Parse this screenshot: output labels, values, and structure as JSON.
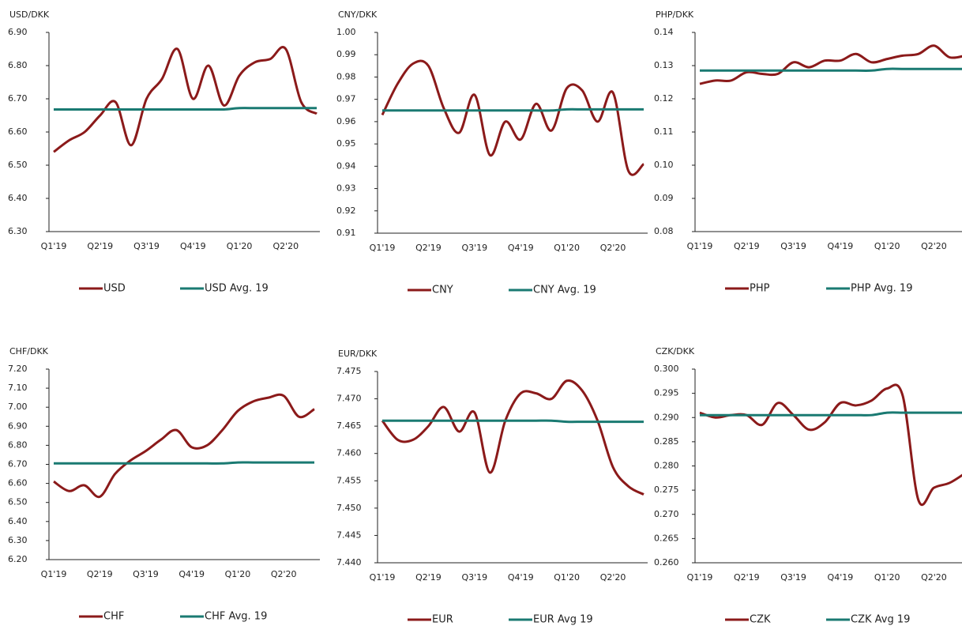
{
  "chart_data": [
    {
      "type": "line",
      "title": "USD/DKK",
      "categories": [
        "Q1'19",
        null,
        null,
        "Q2'19",
        null,
        null,
        "Q3'19",
        null,
        null,
        "Q4'19",
        null,
        null,
        "Q1'20",
        null,
        null,
        "Q2'20",
        null,
        null
      ],
      "series": [
        {
          "name": "USD",
          "color": "#8b1a1a",
          "values": [
            6.54,
            6.575,
            6.6,
            6.65,
            6.69,
            6.56,
            6.7,
            6.76,
            6.85,
            6.7,
            6.8,
            6.68,
            6.77,
            6.81,
            6.82,
            6.85,
            6.69,
            6.655
          ]
        },
        {
          "name": "USD Avg. 19",
          "color": "#1a7a72",
          "values": [
            6.668,
            6.668,
            6.668,
            6.668,
            6.668,
            6.668,
            6.668,
            6.668,
            6.668,
            6.668,
            6.668,
            6.668,
            6.672,
            6.672,
            6.672,
            6.672,
            6.672,
            6.672
          ]
        }
      ],
      "ylim": [
        6.3,
        6.9
      ],
      "yticks": [
        {
          "value": 6.3,
          "label": "6.30"
        },
        {
          "value": 6.4,
          "label": "6.40"
        },
        {
          "value": 6.5,
          "label": "6.50"
        },
        {
          "value": 6.6,
          "label": "6.60"
        },
        {
          "value": 6.7,
          "label": "6.70"
        },
        {
          "value": 6.8,
          "label": "6.80"
        },
        {
          "value": 6.9,
          "label": "6.90"
        }
      ]
    },
    {
      "type": "line",
      "title": "CNY/DKK",
      "categories": [
        "Q1'19",
        null,
        null,
        "Q2'19",
        null,
        null,
        "Q3'19",
        null,
        null,
        "Q4'19",
        null,
        null,
        "Q1'20",
        null,
        null,
        "Q2'20",
        null,
        null
      ],
      "series": [
        {
          "name": "CNY",
          "color": "#8b1a1a",
          "values": [
            0.963,
            0.977,
            0.986,
            0.985,
            0.966,
            0.955,
            0.972,
            0.945,
            0.96,
            0.952,
            0.968,
            0.956,
            0.975,
            0.974,
            0.96,
            0.973,
            0.938,
            0.941
          ]
        },
        {
          "name": "CNY Avg. 19",
          "color": "#1a7a72",
          "values": [
            0.965,
            0.965,
            0.965,
            0.965,
            0.965,
            0.965,
            0.965,
            0.965,
            0.965,
            0.965,
            0.965,
            0.965,
            0.9655,
            0.9655,
            0.9655,
            0.9655,
            0.9655,
            0.9655
          ]
        }
      ],
      "ylim": [
        0.91,
        1.0
      ],
      "yticks": [
        0.91,
        0.92,
        0.93,
        0.94,
        0.95,
        0.96,
        0.97,
        0.98,
        0.99,
        {
          "value": 1.0,
          "label": "1.00"
        }
      ]
    },
    {
      "type": "line",
      "title": "PHP/DKK",
      "categories": [
        "Q1'19",
        null,
        null,
        "Q2'19",
        null,
        null,
        "Q3'19",
        null,
        null,
        "Q4'19",
        null,
        null,
        "Q1'20",
        null,
        null,
        "Q2'20",
        null,
        null
      ],
      "series": [
        {
          "name": "PHP",
          "color": "#8b1a1a",
          "values": [
            0.1245,
            0.1255,
            0.1255,
            0.128,
            0.1275,
            0.1275,
            0.131,
            0.1295,
            0.1315,
            0.1315,
            0.1335,
            0.131,
            0.132,
            0.133,
            0.1335,
            0.136,
            0.1325,
            0.133
          ]
        },
        {
          "name": "PHP Avg. 19",
          "color": "#1a7a72",
          "values": [
            0.1285,
            0.1285,
            0.1285,
            0.1285,
            0.1285,
            0.1285,
            0.1285,
            0.1285,
            0.1285,
            0.1285,
            0.1285,
            0.1285,
            0.129,
            0.129,
            0.129,
            0.129,
            0.129,
            0.129
          ]
        }
      ],
      "ylim": [
        0.08,
        0.14
      ],
      "yticks": [
        0.08,
        0.09,
        {
          "value": 0.1,
          "label": "0.10"
        },
        0.11,
        0.12,
        0.13,
        0.14
      ]
    },
    {
      "type": "line",
      "title": "CHF/DKK",
      "categories": [
        "Q1'19",
        null,
        null,
        "Q2'19",
        null,
        null,
        "Q3'19",
        null,
        null,
        "Q4'19",
        null,
        null,
        "Q1'20",
        null,
        null,
        "Q2'20",
        null,
        null
      ],
      "series": [
        {
          "name": "CHF",
          "color": "#8b1a1a",
          "values": [
            6.61,
            6.56,
            6.59,
            6.53,
            6.65,
            6.72,
            6.77,
            6.83,
            6.88,
            6.79,
            6.8,
            6.88,
            6.98,
            7.03,
            7.05,
            7.06,
            6.95,
            6.99
          ]
        },
        {
          "name": "CHF Avg. 19",
          "color": "#1a7a72",
          "values": [
            6.705,
            6.705,
            6.705,
            6.705,
            6.705,
            6.705,
            6.705,
            6.705,
            6.705,
            6.705,
            6.705,
            6.705,
            6.71,
            6.71,
            6.71,
            6.71,
            6.71,
            6.71
          ]
        }
      ],
      "ylim": [
        6.2,
        7.2
      ],
      "yticks": [
        {
          "value": 6.2,
          "label": "6.20"
        },
        {
          "value": 6.3,
          "label": "6.30"
        },
        {
          "value": 6.4,
          "label": "6.40"
        },
        {
          "value": 6.5,
          "label": "6.50"
        },
        {
          "value": 6.6,
          "label": "6.60"
        },
        {
          "value": 6.7,
          "label": "6.70"
        },
        {
          "value": 6.8,
          "label": "6.80"
        },
        {
          "value": 6.9,
          "label": "6.90"
        },
        {
          "value": 7.0,
          "label": "7.00"
        },
        {
          "value": 7.1,
          "label": "7.10"
        },
        {
          "value": 7.2,
          "label": "7.20"
        }
      ]
    },
    {
      "type": "line",
      "title": "EUR/DKK",
      "categories": [
        "Q1'19",
        null,
        null,
        "Q2'19",
        null,
        null,
        "Q3'19",
        null,
        null,
        "Q4'19",
        null,
        null,
        "Q1'20",
        null,
        null,
        "Q2'20",
        null,
        null
      ],
      "series": [
        {
          "name": "EUR",
          "color": "#8b1a1a",
          "values": [
            7.466,
            7.4625,
            7.4625,
            7.465,
            7.4685,
            7.464,
            7.4675,
            7.4565,
            7.466,
            7.471,
            7.471,
            7.47,
            7.4733,
            7.4715,
            7.466,
            7.4575,
            7.454,
            7.4525
          ]
        },
        {
          "name": "EUR Avg 19",
          "color": "#1a7a72",
          "values": [
            7.466,
            7.466,
            7.466,
            7.466,
            7.466,
            7.466,
            7.466,
            7.466,
            7.466,
            7.466,
            7.466,
            7.466,
            7.4658,
            7.4658,
            7.4658,
            7.4658,
            7.4658,
            7.4658
          ]
        }
      ],
      "ylim": [
        7.44,
        7.475
      ],
      "yticks": [
        {
          "value": 7.44,
          "label": "7.440"
        },
        7.445,
        {
          "value": 7.45,
          "label": "7.450"
        },
        7.455,
        {
          "value": 7.46,
          "label": "7.460"
        },
        7.465,
        {
          "value": 7.47,
          "label": "7.470"
        },
        7.475
      ]
    },
    {
      "type": "line",
      "title": "CZK/DKK",
      "categories": [
        "Q1'19",
        null,
        null,
        "Q2'19",
        null,
        null,
        "Q3'19",
        null,
        null,
        "Q4'19",
        null,
        null,
        "Q1'20",
        null,
        null,
        "Q2'20",
        null,
        null
      ],
      "series": [
        {
          "name": "CZK",
          "color": "#8b1a1a",
          "values": [
            0.291,
            0.29,
            0.2905,
            0.2905,
            0.2885,
            0.293,
            0.2905,
            0.2875,
            0.289,
            0.293,
            0.2925,
            0.2935,
            0.296,
            0.2945,
            0.273,
            0.2755,
            0.2765,
            0.2785
          ]
        },
        {
          "name": "CZK Avg 19",
          "color": "#1a7a72",
          "values": [
            0.2905,
            0.2905,
            0.2905,
            0.2905,
            0.2905,
            0.2905,
            0.2905,
            0.2905,
            0.2905,
            0.2905,
            0.2905,
            0.2905,
            0.291,
            0.291,
            0.291,
            0.291,
            0.291,
            0.291
          ]
        }
      ],
      "ylim": [
        0.26,
        0.3
      ],
      "yticks": [
        {
          "value": 0.26,
          "label": "0.260"
        },
        0.265,
        {
          "value": 0.27,
          "label": "0.270"
        },
        0.275,
        {
          "value": 0.28,
          "label": "0.280"
        },
        0.285,
        {
          "value": 0.29,
          "label": "0.290"
        },
        0.295,
        {
          "value": 0.3,
          "label": "0.300"
        }
      ]
    }
  ]
}
